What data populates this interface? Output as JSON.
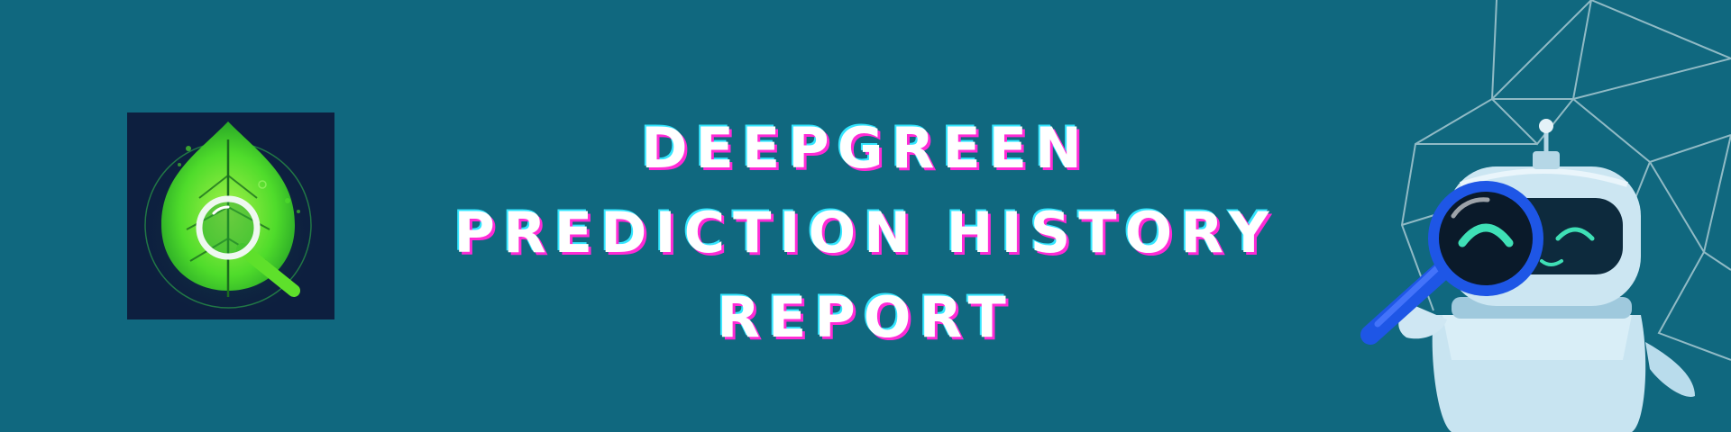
{
  "banner": {
    "background_color": "#10687f",
    "title_lines": [
      "DEEPGREEN",
      "PREDICTION HISTORY",
      "REPORT"
    ]
  },
  "logo": {
    "icon": "leaf-magnifier-logo",
    "tile_color": "#0d1f3f",
    "leaf_color": "#4fdc2b"
  },
  "illustration": {
    "icon": "robot-with-magnifying-glass",
    "network_icon": "geodesic-network-sphere",
    "robot_color": "#b9dcec",
    "magnifier_color": "#1e56e6"
  }
}
